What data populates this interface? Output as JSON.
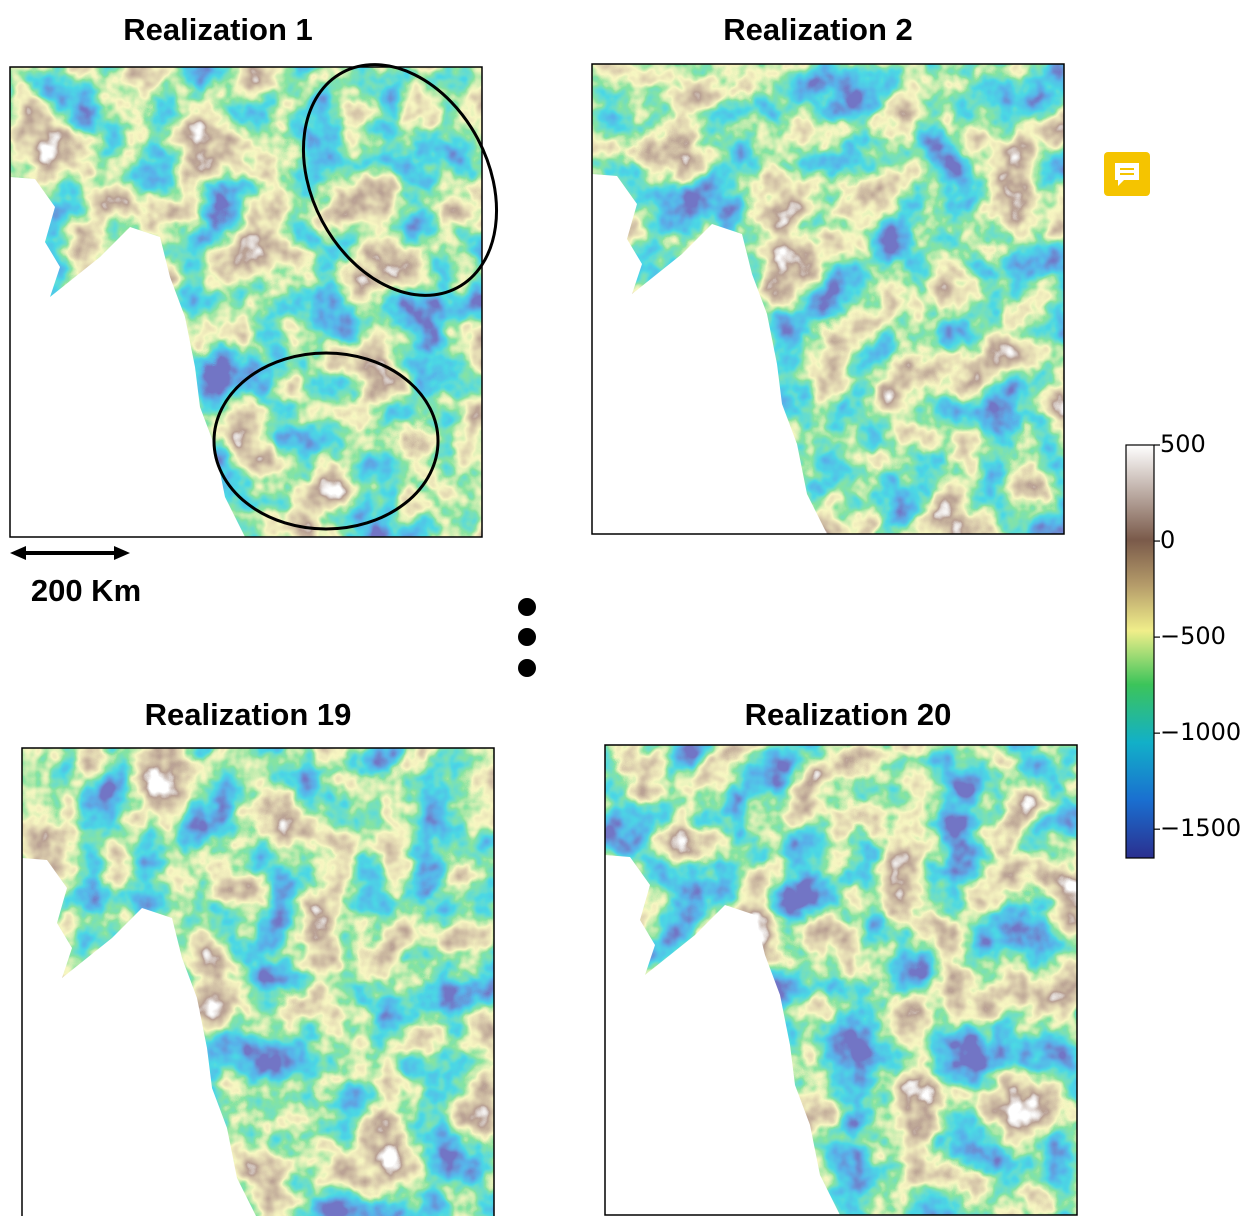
{
  "panels": [
    {
      "title": "Realization 1"
    },
    {
      "title": "Realization 2"
    },
    {
      "title": "Realization 19"
    },
    {
      "title": "Realization 20"
    }
  ],
  "scale_bar": {
    "label": "200 Km"
  },
  "colorbar": {
    "lim": [
      -1650,
      500
    ],
    "ticks": [
      500,
      0,
      {
        "value": -500,
        "label": "−500"
      },
      {
        "value": -1000,
        "label": "−1000"
      },
      {
        "value": -1500,
        "label": "−1500"
      }
    ]
  }
}
